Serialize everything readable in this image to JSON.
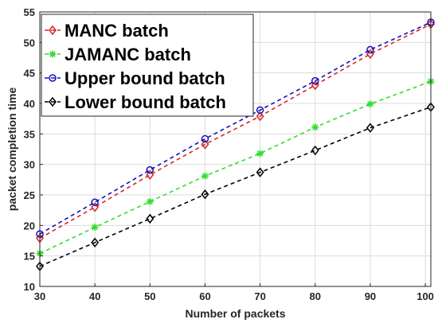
{
  "chart_data": {
    "type": "line",
    "title": "",
    "xlabel": "Number of packets",
    "ylabel": "packet completion time",
    "x": [
      30,
      40,
      50,
      60,
      70,
      80,
      90,
      101
    ],
    "xlim": [
      30,
      101
    ],
    "ylim": [
      10,
      55
    ],
    "xticks": [
      30,
      40,
      50,
      60,
      70,
      80,
      90,
      100
    ],
    "yticks": [
      10,
      15,
      20,
      25,
      30,
      35,
      40,
      45,
      50,
      55
    ],
    "grid": true,
    "legend_position": "top-left",
    "series": [
      {
        "name": "MANC batch",
        "color": "#d62728",
        "marker": "diamond",
        "values": [
          17.9,
          23.0,
          28.3,
          33.3,
          37.9,
          43.0,
          48.1,
          53.0
        ]
      },
      {
        "name": "JAMANC batch",
        "color": "#33dd33",
        "marker": "star",
        "values": [
          15.4,
          19.7,
          23.9,
          28.1,
          31.8,
          36.1,
          39.9,
          43.6
        ]
      },
      {
        "name": "Upper bound batch",
        "color": "#1111bb",
        "marker": "circle",
        "values": [
          18.6,
          23.8,
          29.1,
          34.2,
          38.9,
          43.7,
          48.8,
          53.3
        ]
      },
      {
        "name": "Lower bound batch",
        "color": "#000000",
        "marker": "diamond-open",
        "values": [
          13.3,
          17.2,
          21.1,
          25.1,
          28.7,
          32.3,
          36.0,
          39.4
        ]
      }
    ]
  }
}
